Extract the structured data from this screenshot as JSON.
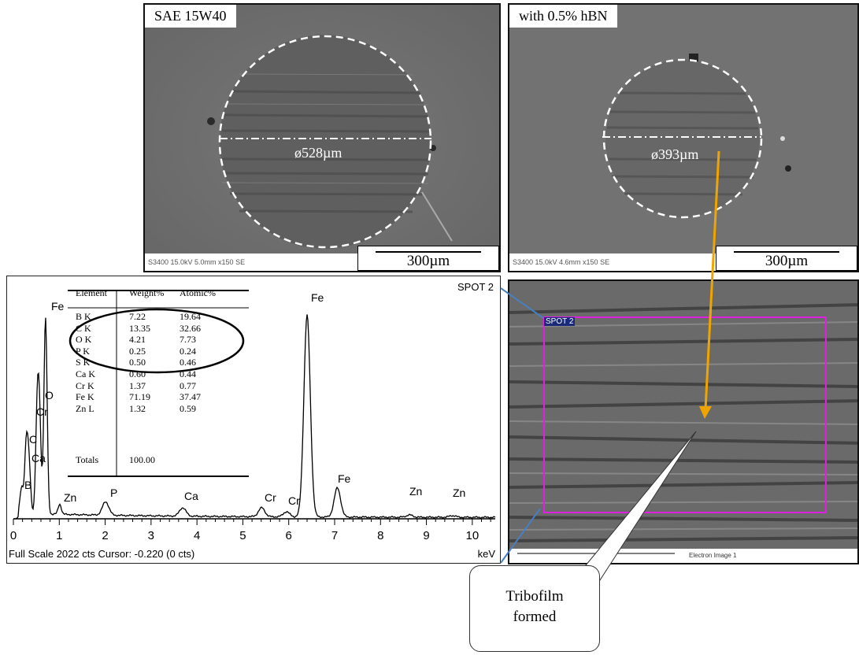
{
  "panels": {
    "sae": {
      "label": "SAE 15W40",
      "diameter": "ø528µm",
      "meta": "S3400 15.0kV 5.0mm x150 SE",
      "scale": "300µm"
    },
    "hbn": {
      "label": "with 0.5% hBN",
      "diameter": "ø393µm",
      "meta": "S3400 15.0kV 4.6mm x150 SE",
      "scale": "300µm"
    },
    "electron": {
      "spot_label": "SPOT 2",
      "footer_label": "Electron Image 1"
    }
  },
  "eds": {
    "spot_label": "SPOT 2",
    "footer": "Full Scale 2022 cts Cursor: -0.220  (0 cts)",
    "x_unit": "keV",
    "table": {
      "headers": [
        "Element",
        "Weight%",
        "Atomic%"
      ],
      "rows": [
        {
          "element": "B K",
          "weight": "7.22",
          "atomic": "19.64"
        },
        {
          "element": "C K",
          "weight": "13.35",
          "atomic": "32.66"
        },
        {
          "element": "O K",
          "weight": "4.21",
          "atomic": "7.73"
        },
        {
          "element": "P K",
          "weight": "0.25",
          "atomic": "0.24"
        },
        {
          "element": "S K",
          "weight": "0.50",
          "atomic": "0.46"
        },
        {
          "element": "Ca K",
          "weight": "0.60",
          "atomic": "0.44"
        },
        {
          "element": "Cr K",
          "weight": "1.37",
          "atomic": "0.77"
        },
        {
          "element": "Fe K",
          "weight": "71.19",
          "atomic": "37.47"
        },
        {
          "element": "Zn L",
          "weight": "1.32",
          "atomic": "0.59"
        }
      ],
      "totals_label": "Totals",
      "totals_value": "100.00"
    }
  },
  "callout": {
    "line1": "Tribofilm",
    "line2": "formed"
  },
  "chart_data": {
    "type": "line",
    "title": "",
    "xlabel": "keV",
    "ylabel": "",
    "xlim": [
      0,
      10.5
    ],
    "ylim": [
      0,
      2022
    ],
    "x_ticks": [
      0,
      1,
      2,
      3,
      4,
      5,
      6,
      7,
      8,
      9,
      10
    ],
    "peaks": [
      {
        "label": "B",
        "x": 0.18,
        "y": 230
      },
      {
        "label": "C",
        "x": 0.28,
        "y": 600
      },
      {
        "label": "O",
        "x": 0.52,
        "y": 870
      },
      {
        "label": "Cr",
        "x": 0.57,
        "y": 760
      },
      {
        "label": "Ca",
        "x": 0.34,
        "y": 420
      },
      {
        "label": "Fe",
        "x": 0.7,
        "y": 1750
      },
      {
        "label": "Zn",
        "x": 1.01,
        "y": 90
      },
      {
        "label": "P",
        "x": 2.01,
        "y": 120
      },
      {
        "label": "Ca",
        "x": 3.69,
        "y": 75
      },
      {
        "label": "Cr",
        "x": 5.41,
        "y": 80
      },
      {
        "label": "Cr",
        "x": 5.95,
        "y": 45
      },
      {
        "label": "Fe",
        "x": 6.4,
        "y": 1800
      },
      {
        "label": "Fe",
        "x": 7.06,
        "y": 260
      },
      {
        "label": "Zn",
        "x": 8.63,
        "y": 20
      },
      {
        "label": "Zn",
        "x": 9.57,
        "y": 15
      }
    ]
  },
  "colors": {
    "sem_bg": "#707070",
    "dashed_circle": "#ffffff",
    "arrow": "#f0a400",
    "roi_box": "#e020e0",
    "connector": "#4a7fbf"
  }
}
